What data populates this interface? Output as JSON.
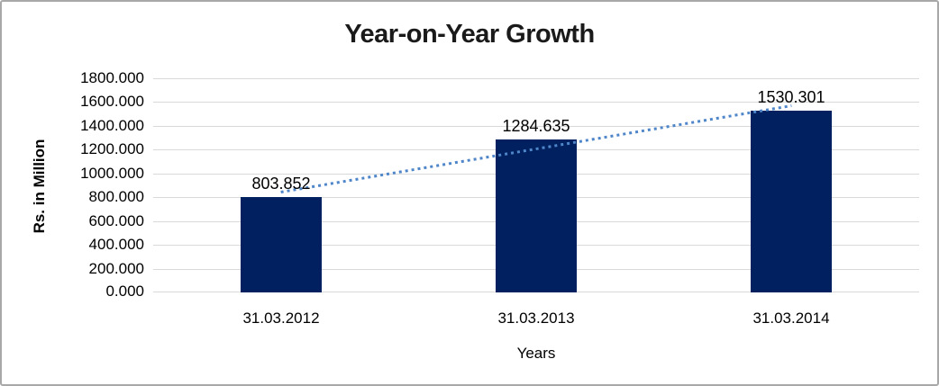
{
  "chart_data": {
    "type": "bar",
    "title": "Year-on-Year Growth",
    "categories": [
      "31.03.2012",
      "31.03.2013",
      "31.03.2014"
    ],
    "values": [
      803.852,
      1284.635,
      1530.301
    ],
    "data_labels": [
      "803.852",
      "1284.635",
      "1530.301"
    ],
    "xlabel": "Years",
    "ylabel": "Rs. in Million",
    "ylim": [
      0,
      1800
    ],
    "ytick_step": 200,
    "ytick_labels": [
      "0.000",
      "200.000",
      "400.000",
      "600.000",
      "800.000",
      "1000.000",
      "1200.000",
      "1400.000",
      "1600.000",
      "1800.000"
    ],
    "grid": "horizontal",
    "legend": "none",
    "trendline": {
      "kind": "linear",
      "style": "dotted"
    },
    "colors": {
      "bar": "#002060",
      "trendline": "#4f86c9",
      "gridline": "#d9d9d9",
      "text": "#000000",
      "frame_border": "#a8a8a8",
      "background": "#ffffff"
    }
  }
}
